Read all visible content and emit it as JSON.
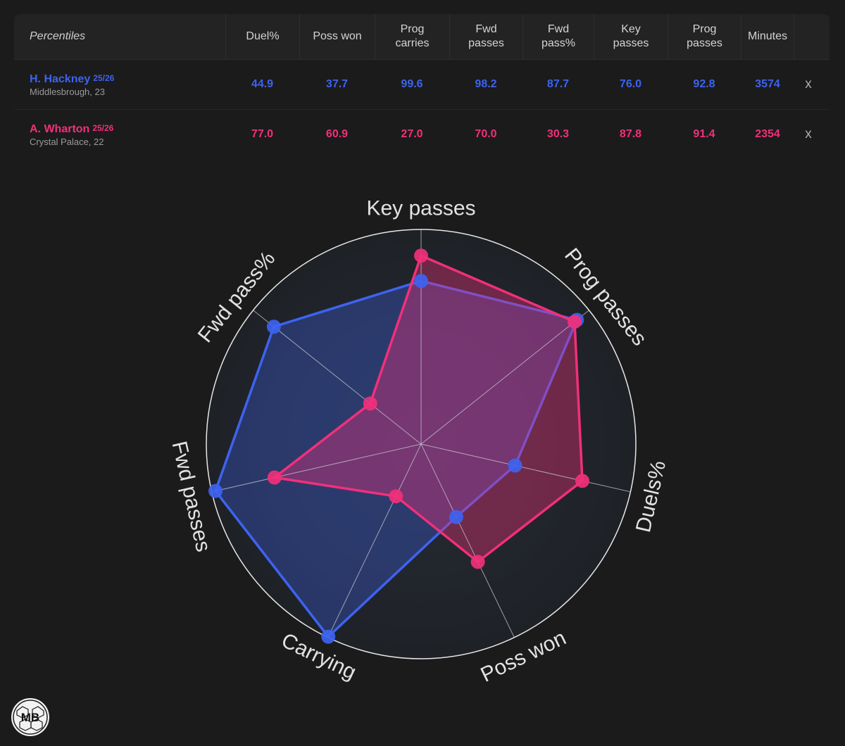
{
  "table": {
    "header_label": "Percentiles",
    "columns": [
      "Duel%",
      "Poss won",
      "Prog\ncarries",
      "Fwd\npasses",
      "Fwd\npass%",
      "Key\npasses",
      "Prog\npasses",
      "Minutes"
    ],
    "remove_label": "x",
    "players": [
      {
        "name": "H. Hackney",
        "season": "25/26",
        "club": "Middlesbrough, 23",
        "color": "#3d63f0",
        "values": [
          "44.9",
          "37.7",
          "99.6",
          "98.2",
          "87.7",
          "76.0",
          "92.8",
          "3574"
        ]
      },
      {
        "name": "A. Wharton",
        "season": "25/26",
        "club": "Crystal Palace, 22",
        "color": "#f0307a",
        "values": [
          "77.0",
          "60.9",
          "27.0",
          "70.0",
          "30.3",
          "87.8",
          "91.4",
          "2354"
        ]
      }
    ]
  },
  "chart_data": {
    "type": "radar",
    "axes": [
      "Key passes",
      "Prog passes",
      "Duels%",
      "Poss won",
      "Carrying",
      "Fwd passes",
      "Fwd pass%"
    ],
    "range": [
      0,
      100
    ],
    "series": [
      {
        "name": "H. Hackney",
        "color": "#3d63f0",
        "values": [
          76.0,
          92.8,
          44.9,
          37.7,
          99.6,
          98.2,
          87.7
        ]
      },
      {
        "name": "A. Wharton",
        "color": "#f0307a",
        "values": [
          87.8,
          91.4,
          77.0,
          60.9,
          27.0,
          70.0,
          30.3
        ]
      }
    ]
  },
  "logo": {
    "text": "MB",
    "icon": "mb-badge-icon"
  }
}
